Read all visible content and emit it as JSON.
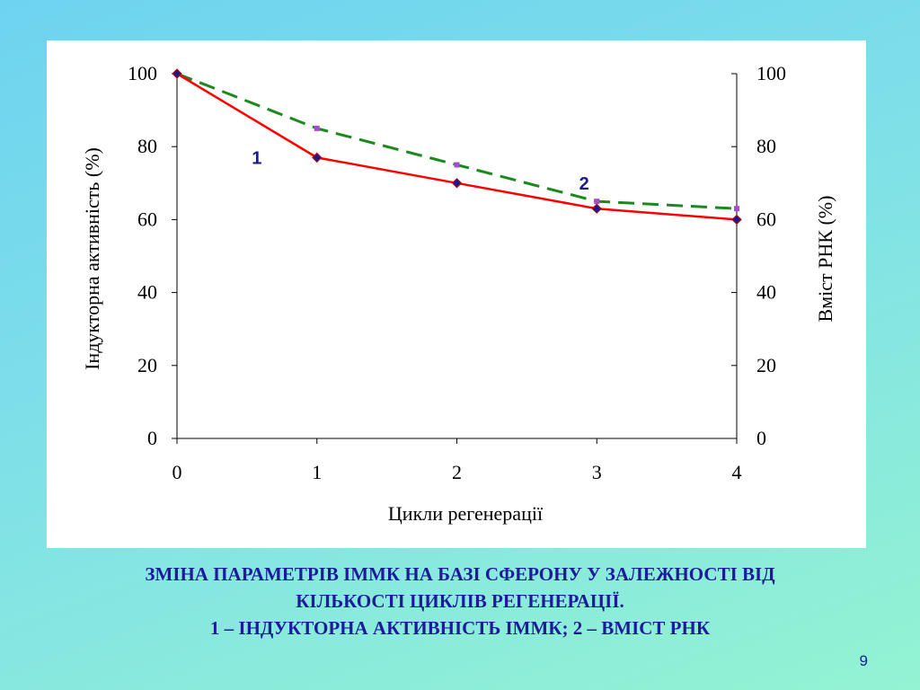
{
  "chart_data": {
    "type": "line",
    "x": [
      0,
      1,
      2,
      3,
      4
    ],
    "xlabel": "Цикли регенерації",
    "ylabel_left": "Індукторна активність (%)",
    "ylabel_right": "Вміст РНК (%)",
    "ylim": [
      0,
      100
    ],
    "yticks": [
      "0",
      "20",
      "40",
      "60",
      "80",
      "100"
    ],
    "xticks": [
      "0",
      "1",
      "2",
      "3",
      "4"
    ],
    "grid": false,
    "series": [
      {
        "label": "1",
        "values": [
          100,
          77,
          70,
          63,
          60
        ],
        "color": "#ff0000",
        "marker_color": "#1a1a8c",
        "style": "solid",
        "axis": "left"
      },
      {
        "label": "2",
        "values": [
          100,
          85,
          75,
          65,
          63
        ],
        "color": "#1a8a1a",
        "marker_color": "#a64ccf",
        "style": "dashed",
        "axis": "right"
      }
    ]
  },
  "caption": {
    "line1": "ЗМІНА ПАРАМЕТРІВ ІММК НА БАЗІ СФЕРОНУ У ЗАЛЕЖНОСТІ ВІД",
    "line2": "КІЛЬКОСТІ ЦИКЛІВ РЕГЕНЕРАЦІЇ.",
    "line3": "1 – ІНДУКТОРНА АКТИВНІСТЬ ІММК; 2 – ВМІСТ РНК"
  },
  "page_number": "9"
}
